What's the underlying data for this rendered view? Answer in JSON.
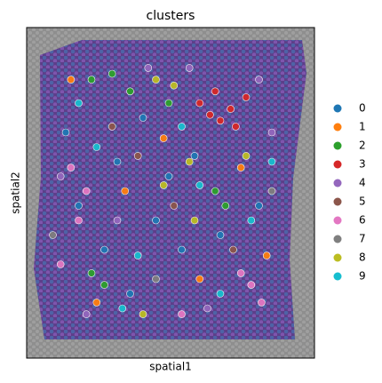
{
  "chart_data": {
    "type": "scatter",
    "title": "clusters",
    "x_label": "spatial1",
    "y_label": "spatial2",
    "xlim": [
      0,
      100
    ],
    "ylim": [
      0,
      100
    ],
    "series": [
      {
        "name": "0",
        "color": "#1f77b4",
        "x": [
          10,
          30,
          45,
          55,
          40,
          60,
          25,
          50,
          70,
          35,
          85,
          15
        ],
        "y": [
          70,
          60,
          40,
          30,
          75,
          62,
          30,
          55,
          35,
          15,
          45,
          45
        ]
      },
      {
        "name": "1",
        "color": "#ff7f0e",
        "x": [
          12,
          48,
          62,
          33,
          78,
          22,
          88
        ],
        "y": [
          88,
          68,
          20,
          50,
          58,
          12,
          28
        ]
      },
      {
        "name": "2",
        "color": "#2ca02c",
        "x": [
          20,
          28,
          35,
          68,
          72,
          20,
          25,
          50
        ],
        "y": [
          88,
          90,
          84,
          50,
          45,
          22,
          18,
          80
        ]
      },
      {
        "name": "3",
        "color": "#d62728",
        "x": [
          62,
          68,
          74,
          80,
          70,
          76,
          66
        ],
        "y": [
          80,
          84,
          78,
          82,
          74,
          72,
          76
        ]
      },
      {
        "name": "4",
        "color": "#9467bd",
        "x": [
          8,
          42,
          58,
          90,
          30,
          65,
          85,
          18
        ],
        "y": [
          55,
          92,
          92,
          70,
          40,
          10,
          88,
          8
        ]
      },
      {
        "name": "5",
        "color": "#8c564b",
        "x": [
          38,
          52,
          75,
          28
        ],
        "y": [
          62,
          45,
          30,
          72
        ]
      },
      {
        "name": "6",
        "color": "#e377c2",
        "x": [
          12,
          18,
          15,
          82,
          86,
          78,
          55,
          8
        ],
        "y": [
          58,
          50,
          40,
          18,
          12,
          22,
          8,
          25
        ]
      },
      {
        "name": "7",
        "color": "#7f7f7f",
        "x": [
          45,
          90,
          5
        ],
        "y": [
          20,
          50,
          35
        ]
      },
      {
        "name": "8",
        "color": "#bcbd22",
        "x": [
          45,
          52,
          58,
          48,
          60,
          40,
          80
        ],
        "y": [
          88,
          86,
          60,
          52,
          40,
          8,
          62
        ]
      },
      {
        "name": "9",
        "color": "#17becf",
        "x": [
          22,
          38,
          62,
          82,
          15,
          32,
          70,
          90,
          55
        ],
        "y": [
          65,
          28,
          52,
          40,
          80,
          10,
          15,
          60,
          72
        ]
      }
    ]
  }
}
